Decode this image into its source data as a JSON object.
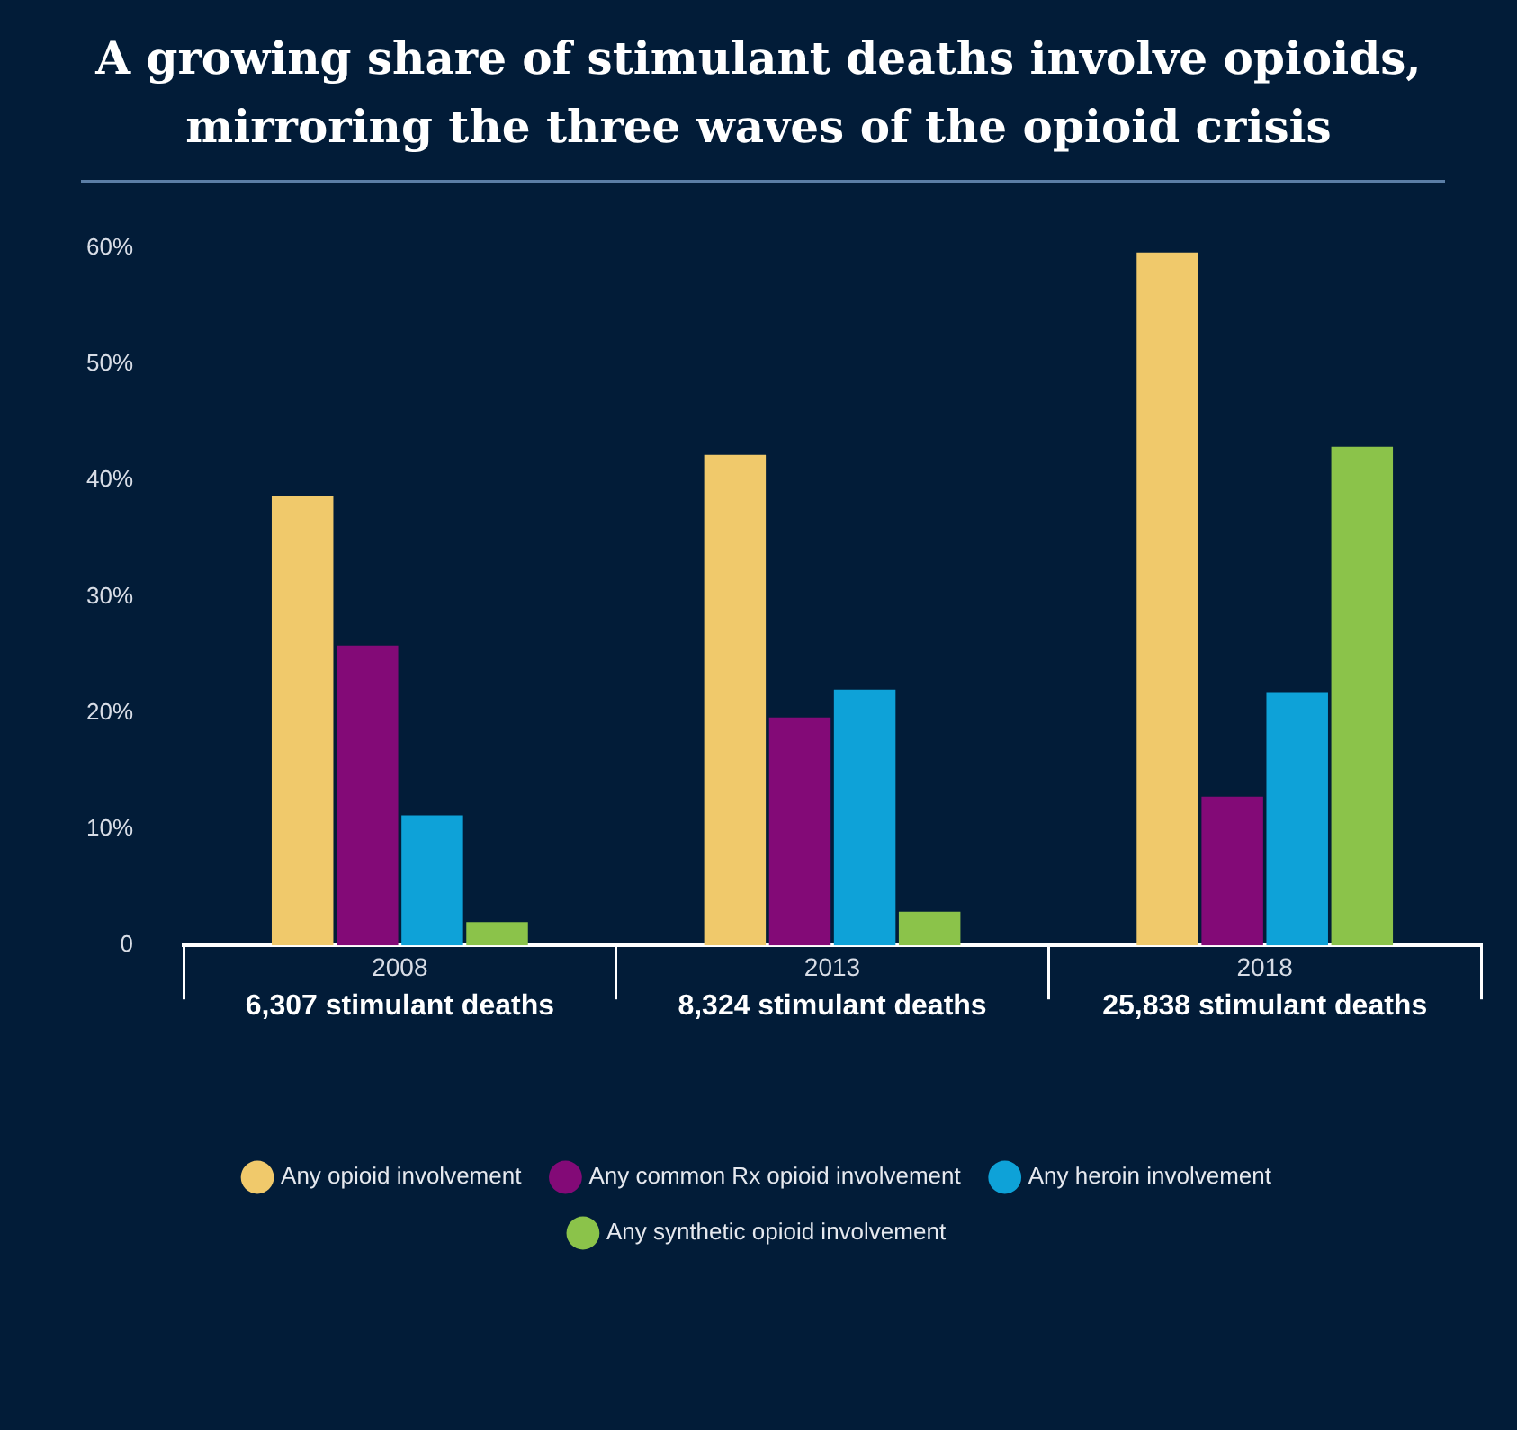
{
  "chart_data": {
    "type": "bar",
    "title": "A growing share of stimulant deaths involve opioids, mirroring the three waves of the opioid crisis",
    "categories": [
      "2008\n6,307 stimulant deaths",
      "2013\n8,324 stimulant deaths",
      "2018\n25,838 stimulant deaths"
    ],
    "series": [
      {
        "name": "Any opioid involvement",
        "color": "#f0c96b",
        "values": [
          38.7,
          42.2,
          59.6
        ]
      },
      {
        "name": "Any common Rx opioid involvement",
        "color": "#830a77",
        "values": [
          25.8,
          19.6,
          12.8
        ]
      },
      {
        "name": "Any heroin involvement",
        "color": "#0ea2d8",
        "values": [
          11.2,
          22.0,
          21.8
        ]
      },
      {
        "name": "Any synthetic opioid involvement",
        "color": "#8bc34a",
        "values": [
          2.0,
          2.9,
          42.9
        ]
      }
    ],
    "ylim": [
      0,
      60
    ],
    "yticks": [
      0,
      {
        "value": 10,
        "label": "10%"
      },
      {
        "value": 20,
        "label": "20%"
      },
      {
        "value": 30,
        "label": "30%"
      },
      {
        "value": 40,
        "label": "40%"
      },
      {
        "value": 50,
        "label": "50%"
      },
      {
        "value": 60,
        "label": "60%"
      }
    ],
    "grid": false,
    "legend": "bottom"
  }
}
